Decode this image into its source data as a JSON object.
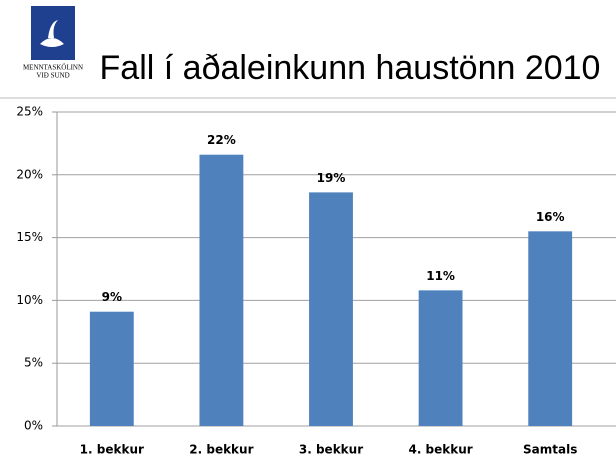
{
  "logo": {
    "line1": "MENNTASKÓLINN",
    "line2": "VIÐ SUND"
  },
  "chart_data": {
    "type": "bar",
    "title": "Fall í aðaleinkunn haustönn 2010",
    "categories": [
      "1. bekkur",
      "2. bekkur",
      "3. bekkur",
      "4. bekkur",
      "Samtals"
    ],
    "values": [
      9.1,
      21.6,
      18.6,
      10.8,
      15.5
    ],
    "value_labels": [
      "9%",
      "22%",
      "19%",
      "11%",
      "16%"
    ],
    "color": "#4f81bd",
    "ylim": [
      0,
      25
    ],
    "yticks": [
      {
        "value": 0,
        "label": "0%"
      },
      {
        "value": 5,
        "label": "5%"
      },
      {
        "value": 10,
        "label": "10%"
      },
      {
        "value": 15,
        "label": "15%"
      },
      {
        "value": 20,
        "label": "20%"
      },
      {
        "value": 25,
        "label": "25%"
      }
    ],
    "grid": true
  }
}
